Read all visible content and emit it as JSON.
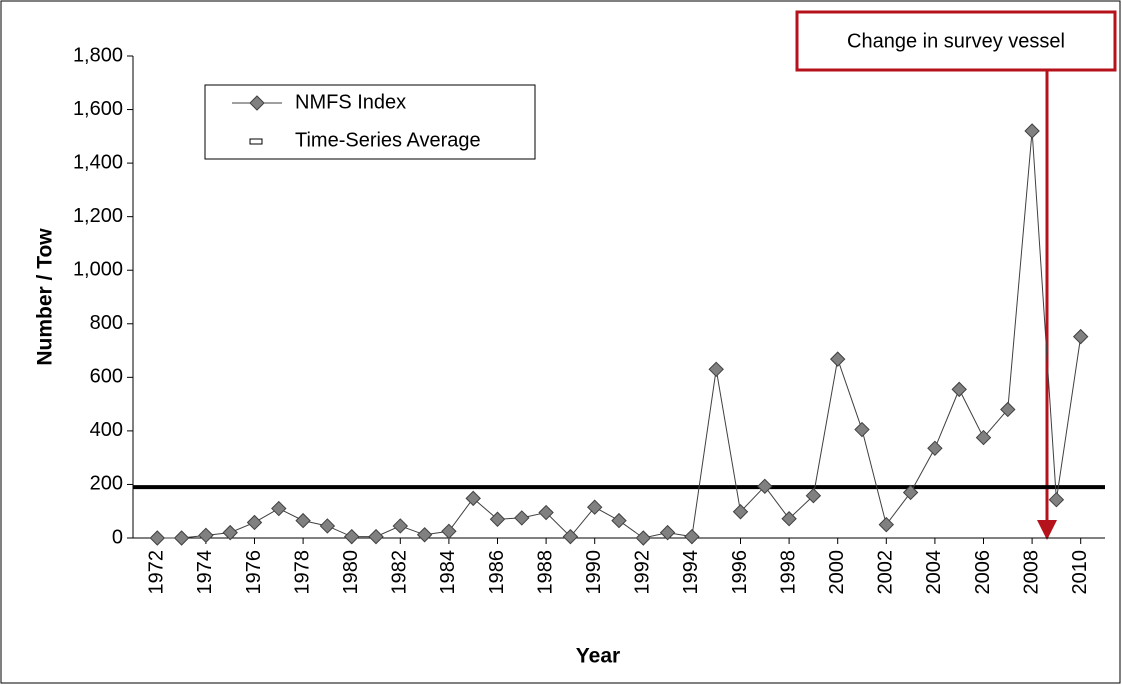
{
  "chart_data": {
    "type": "line",
    "x_label": "Year",
    "y_label": "Number / Tow",
    "x": [
      1972,
      1973,
      1974,
      1975,
      1976,
      1977,
      1978,
      1979,
      1980,
      1981,
      1982,
      1983,
      1984,
      1985,
      1986,
      1987,
      1988,
      1989,
      1990,
      1991,
      1992,
      1993,
      1994,
      1995,
      1996,
      1997,
      1998,
      1999,
      2000,
      2001,
      2002,
      2003,
      2004,
      2005,
      2006,
      2007,
      2008,
      2009,
      2010
    ],
    "series": [
      {
        "name": "NMFS Index",
        "color": "#808080",
        "values": [
          0,
          0,
          10,
          20,
          58,
          110,
          65,
          45,
          5,
          5,
          45,
          12,
          25,
          148,
          70,
          75,
          95,
          5,
          115,
          65,
          0,
          20,
          5,
          630,
          98,
          193,
          72,
          158,
          668,
          405,
          50,
          170,
          335,
          555,
          375,
          480,
          1520,
          143,
          752
        ]
      }
    ],
    "average": {
      "name": "Time-Series Average",
      "value": 190
    },
    "annotation": "Change in survey vessel",
    "xlim": [
      1971,
      2011
    ],
    "xticks": [
      1972,
      1974,
      1976,
      1978,
      1980,
      1982,
      1984,
      1986,
      1988,
      1990,
      1992,
      1994,
      1996,
      1998,
      2000,
      2002,
      2004,
      2006,
      2008,
      2010
    ],
    "ylim": [
      0,
      1800
    ],
    "yticks": [
      0,
      200,
      400,
      600,
      800,
      {
        "value": 1000,
        "label": "1,000"
      },
      {
        "value": 1200,
        "label": "1,200"
      },
      {
        "value": 1400,
        "label": "1,400"
      },
      {
        "value": 1600,
        "label": "1,600"
      },
      {
        "value": 1800,
        "label": "1,800"
      }
    ]
  }
}
